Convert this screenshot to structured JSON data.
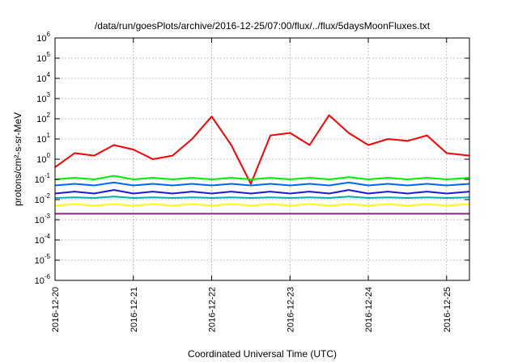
{
  "chart_data": {
    "type": "line",
    "title": "/data/run/goesPlots/archive/2016-12-25/07:00/flux/../flux/5daysMoonFluxes.txt",
    "xlabel": "Coordinated Universal Time (UTC)",
    "ylabel": "protons/cm²-s-sr-MeV",
    "y_scale": "log",
    "ylim": [
      1e-06,
      1000000.0
    ],
    "xlim": [
      "2016-12-20 00:00",
      "2016-12-25 07:00"
    ],
    "x_tick_labels": [
      "2016-12-20",
      "2016-12-21",
      "2016-12-22",
      "2016-12-23",
      "2016-12-24",
      "2016-12-25"
    ],
    "y_tick_labels": [
      {
        "base": "10",
        "exp": "-6"
      },
      {
        "base": "10",
        "exp": "-5"
      },
      {
        "base": "10",
        "exp": "-4"
      },
      {
        "base": "10",
        "exp": "-3"
      },
      {
        "base": "10",
        "exp": "-2"
      },
      {
        "base": "10",
        "exp": "-1"
      },
      {
        "base": "10",
        "exp": "0"
      },
      {
        "base": "10",
        "exp": "1"
      },
      {
        "base": "10",
        "exp": "2"
      },
      {
        "base": "10",
        "exp": "3"
      },
      {
        "base": "10",
        "exp": "4"
      },
      {
        "base": "10",
        "exp": "5"
      },
      {
        "base": "10",
        "exp": "6"
      }
    ],
    "grid": true,
    "legend": "none",
    "x": [
      "2016-12-20 00:00",
      "2016-12-20 06:00",
      "2016-12-20 12:00",
      "2016-12-20 18:00",
      "2016-12-21 00:00",
      "2016-12-21 06:00",
      "2016-12-21 12:00",
      "2016-12-21 18:00",
      "2016-12-22 00:00",
      "2016-12-22 06:00",
      "2016-12-22 12:00",
      "2016-12-22 18:00",
      "2016-12-23 00:00",
      "2016-12-23 06:00",
      "2016-12-23 12:00",
      "2016-12-23 18:00",
      "2016-12-24 00:00",
      "2016-12-24 06:00",
      "2016-12-24 12:00",
      "2016-12-24 18:00",
      "2016-12-25 00:00",
      "2016-12-25 07:00"
    ],
    "series": [
      {
        "color": "#ff0000",
        "values": [
          0.4,
          2,
          1.5,
          5,
          3,
          1,
          1.5,
          10,
          130,
          5,
          0.06,
          15,
          20,
          5,
          150,
          20,
          5,
          10,
          8,
          15,
          2,
          1.5
        ]
      },
      {
        "color": "#00ee00",
        "values": [
          0.1,
          0.12,
          0.1,
          0.15,
          0.1,
          0.12,
          0.1,
          0.12,
          0.1,
          0.12,
          0.1,
          0.12,
          0.1,
          0.12,
          0.1,
          0.13,
          0.1,
          0.12,
          0.1,
          0.12,
          0.1,
          0.12
        ]
      },
      {
        "color": "#0066ff",
        "values": [
          0.05,
          0.06,
          0.05,
          0.07,
          0.05,
          0.06,
          0.05,
          0.06,
          0.05,
          0.06,
          0.05,
          0.06,
          0.05,
          0.06,
          0.05,
          0.07,
          0.05,
          0.06,
          0.05,
          0.06,
          0.05,
          0.06
        ]
      },
      {
        "color": "#1b1bd8",
        "values": [
          0.02,
          0.025,
          0.02,
          0.03,
          0.02,
          0.025,
          0.02,
          0.025,
          0.02,
          0.025,
          0.02,
          0.025,
          0.02,
          0.025,
          0.02,
          0.03,
          0.02,
          0.025,
          0.02,
          0.025,
          0.02,
          0.025
        ]
      },
      {
        "color": "#00b0b0",
        "values": [
          0.012,
          0.013,
          0.012,
          0.014,
          0.012,
          0.013,
          0.012,
          0.013,
          0.012,
          0.013,
          0.012,
          0.013,
          0.012,
          0.013,
          0.012,
          0.014,
          0.012,
          0.013,
          0.012,
          0.013,
          0.012,
          0.013
        ]
      },
      {
        "color": "#ffff00",
        "values": [
          0.005,
          0.006,
          0.005,
          0.006,
          0.005,
          0.006,
          0.005,
          0.006,
          0.005,
          0.006,
          0.005,
          0.006,
          0.005,
          0.006,
          0.005,
          0.006,
          0.005,
          0.006,
          0.005,
          0.006,
          0.005,
          0.006
        ]
      },
      {
        "color": "#7f2a7f",
        "values": [
          0.002,
          0.002,
          0.002,
          0.002,
          0.002,
          0.002,
          0.002,
          0.002,
          0.002,
          0.002,
          0.002,
          0.002,
          0.002,
          0.002,
          0.002,
          0.002,
          0.002,
          0.002,
          0.002,
          0.002,
          0.002,
          0.002
        ]
      }
    ]
  }
}
